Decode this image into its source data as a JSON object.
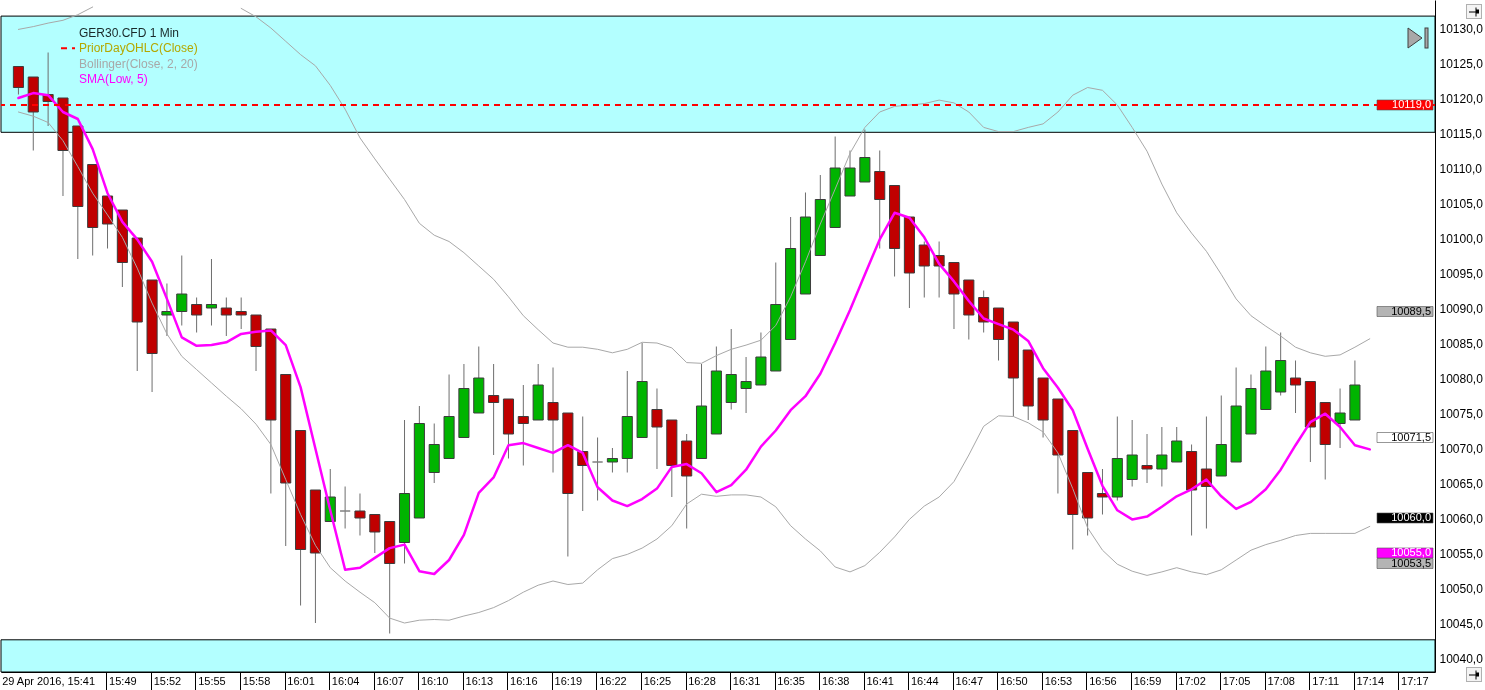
{
  "chart_data": {
    "type": "candlestick",
    "title": "GER30.CFD 1 Min",
    "legend": "top left",
    "categories": [
      null,
      null,
      "29 Apr 2016, 15:41",
      null,
      null,
      null,
      null,
      "15:49",
      null,
      null,
      "15:52",
      null,
      null,
      "15:55",
      null,
      null,
      "15:58",
      null,
      null,
      "16:01",
      null,
      null,
      "16:04",
      null,
      null,
      "16:07",
      null,
      null,
      "16:10",
      null,
      null,
      "16:13",
      null,
      null,
      "16:16",
      null,
      null,
      "16:19",
      null,
      null,
      "16:22",
      null,
      null,
      "16:25",
      null,
      null,
      "16:28",
      null,
      null,
      "16:31",
      null,
      null,
      "16:35",
      null,
      null,
      "16:38",
      null,
      null,
      "16:41",
      null,
      null,
      "16:44",
      null,
      null,
      "16:47",
      null,
      null,
      "16:50",
      null,
      null,
      "16:53",
      null,
      null,
      "16:56",
      null,
      null,
      "16:59",
      null,
      null,
      "17:02",
      null,
      null,
      "17:05",
      null,
      null,
      "17:08",
      null,
      null,
      "17:11",
      null,
      null,
      "17:14",
      null,
      null,
      "17:17"
    ],
    "ohlc": [
      [
        10124.5,
        10124.5,
        10120.5,
        10121.5
      ],
      [
        10123,
        10123,
        10112.5,
        10118
      ],
      [
        10120.5,
        10126.5,
        10116,
        10119.5
      ],
      [
        10120,
        10120,
        10106,
        10112.5
      ],
      [
        10116,
        10116,
        10097,
        10104.5
      ],
      [
        10110.5,
        10110.5,
        10097.5,
        10101.5
      ],
      [
        10106,
        10106,
        10098.5,
        10102
      ],
      [
        10104,
        10104,
        10093,
        10096.5
      ],
      [
        10100,
        10100,
        10081,
        10088
      ],
      [
        10094,
        10094,
        10078,
        10083.5
      ],
      [
        10089,
        10093.5,
        10086,
        10089.5
      ],
      [
        10089.5,
        10097.5,
        10087.5,
        10092
      ],
      [
        10090.5,
        10091.5,
        10086.5,
        10089
      ],
      [
        10090,
        10097,
        10087.5,
        10090.5
      ],
      [
        10090,
        10091.5,
        10086,
        10089
      ],
      [
        10089.5,
        10091.5,
        10087,
        10089
      ],
      [
        10089,
        10089,
        10081,
        10084.5
      ],
      [
        10087,
        10087,
        10063.5,
        10074
      ],
      [
        10080.5,
        10080.5,
        10056,
        10065
      ],
      [
        10072.5,
        10072.5,
        10047.5,
        10055.5
      ],
      [
        10064,
        10064,
        10045,
        10055
      ],
      [
        10059.5,
        10067,
        10059.5,
        10063
      ],
      [
        10061,
        10064.5,
        10058.5,
        10061
      ],
      [
        10061,
        10063.5,
        10057.5,
        10060
      ],
      [
        10060.5,
        10060.5,
        10055,
        10058
      ],
      [
        10059.5,
        10059.5,
        10043.5,
        10053.5
      ],
      [
        10056.5,
        10074,
        10053.5,
        10063.5
      ],
      [
        10060,
        10076,
        10060,
        10073.5
      ],
      [
        10066.5,
        10073.5,
        10065,
        10070.5
      ],
      [
        10068.5,
        10080.5,
        10068.5,
        10074.5
      ],
      [
        10071.5,
        10082,
        10071.5,
        10078.5
      ],
      [
        10075,
        10084.5,
        10075,
        10080
      ],
      [
        10077.5,
        10082,
        10069,
        10076.5
      ],
      [
        10077,
        10077,
        10068.5,
        10072
      ],
      [
        10074.5,
        10079,
        10067.5,
        10073.5
      ],
      [
        10074,
        10082,
        10074,
        10079
      ],
      [
        10076.5,
        10081.5,
        10066.5,
        10074
      ],
      [
        10075,
        10075,
        10054.5,
        10063.5
      ],
      [
        10069.5,
        10074.5,
        10061,
        10067.5
      ],
      [
        10068,
        10071.5,
        10062.5,
        10068
      ],
      [
        10068,
        10070,
        10066.5,
        10068.5
      ],
      [
        10068.5,
        10081,
        10066.5,
        10074.5
      ],
      [
        10071.5,
        10085,
        10071.5,
        10079.5
      ],
      [
        10075.5,
        10078.5,
        10067,
        10073
      ],
      [
        10074,
        10074,
        10063,
        10067.5
      ],
      [
        10071,
        10072,
        10058.5,
        10066
      ],
      [
        10068.5,
        10082,
        10068.5,
        10076
      ],
      [
        10072,
        10084.5,
        10072,
        10081
      ],
      [
        10076.5,
        10087,
        10075.5,
        10080.5
      ],
      [
        10078.5,
        10083,
        10075,
        10079.5
      ],
      [
        10079,
        10086.5,
        10079,
        10083
      ],
      [
        10081,
        10096.5,
        10081,
        10090.5
      ],
      [
        10085.5,
        10103,
        10085.5,
        10098.5
      ],
      [
        10092,
        10106.5,
        10092,
        10103
      ],
      [
        10097.5,
        10109,
        10097.5,
        10105.5
      ],
      [
        10101.5,
        10114.5,
        10101.5,
        10110
      ],
      [
        10106,
        10112.5,
        10106,
        10110
      ],
      [
        10108,
        10115.5,
        10108,
        10111.5
      ],
      [
        10109.5,
        10112.5,
        10098.5,
        10105.5
      ],
      [
        10107.5,
        10107.5,
        10094.5,
        10098.5
      ],
      [
        10103,
        10103,
        10090,
        10095
      ],
      [
        10099,
        10099.5,
        10091.5,
        10096
      ],
      [
        10097.5,
        10099.5,
        10091.5,
        10096
      ],
      [
        10096.5,
        10096.5,
        10087,
        10092
      ],
      [
        10094,
        10094,
        10085.5,
        10089
      ],
      [
        10091.5,
        10092.5,
        10086.5,
        10088
      ],
      [
        10090,
        10090,
        10082.5,
        10085.5
      ],
      [
        10088,
        10088,
        10074.5,
        10080
      ],
      [
        10084,
        10084,
        10074,
        10076
      ],
      [
        10080,
        10080,
        10071.5,
        10074
      ],
      [
        10077,
        10077,
        10063.5,
        10069
      ],
      [
        10072.5,
        10072.5,
        10055.5,
        10060.5
      ],
      [
        10066.5,
        10066.5,
        10057.5,
        10060
      ],
      [
        10063.5,
        10067,
        10060.5,
        10063
      ],
      [
        10063,
        10074.5,
        10062.5,
        10068.5
      ],
      [
        10065.5,
        10074,
        10064.5,
        10069
      ],
      [
        10067.5,
        10072,
        10065,
        10067
      ],
      [
        10067,
        10073,
        10064.5,
        10069
      ],
      [
        10068,
        10073,
        10068,
        10071
      ],
      [
        10069.5,
        10070.5,
        10057.5,
        10064
      ],
      [
        10067,
        10074.5,
        10058.5,
        10064.5
      ],
      [
        10066,
        10077.5,
        10066,
        10070.5
      ],
      [
        10068,
        10081.5,
        10068,
        10076
      ],
      [
        10072,
        10080.5,
        10072,
        10078.5
      ],
      [
        10075.5,
        10084.5,
        10075.5,
        10081
      ],
      [
        10078,
        10086.5,
        10077.5,
        10082.5
      ],
      [
        10080,
        10082.5,
        10075,
        10079
      ],
      [
        10079.5,
        10079.5,
        10068,
        10073
      ],
      [
        10076.5,
        10076.5,
        10065.5,
        10070.5
      ],
      [
        10073.5,
        10078.5,
        10070,
        10075
      ],
      [
        10074,
        10082.5,
        10074,
        10079
      ],
      null,
      null,
      null,
      null
    ],
    "colors": [
      "#c00000",
      "#c00000",
      "#c00000",
      "#c00000",
      "#c00000",
      "#c00000",
      "#c00000",
      "#c00000",
      "#c00000",
      "#c00000",
      "#00b400",
      "#00b400",
      "#c00000",
      "#00b400",
      "#c00000",
      "#c00000",
      "#c00000",
      "#c00000",
      "#c00000",
      "#c00000",
      "#c00000",
      "#00b400",
      "#808080",
      "#c00000",
      "#c00000",
      "#c00000",
      "#00b400",
      "#00b400",
      "#00b400",
      "#00b400",
      "#00b400",
      "#00b400",
      "#c00000",
      "#c00000",
      "#c00000",
      "#00b400",
      "#c00000",
      "#c00000",
      "#c00000",
      "#808080",
      "#00b400",
      "#00b400",
      "#00b400",
      "#c00000",
      "#c00000",
      "#c00000",
      "#00b400",
      "#00b400",
      "#00b400",
      "#00b400",
      "#00b400",
      "#00b400",
      "#00b400",
      "#00b400",
      "#00b400",
      "#00b400",
      "#00b400",
      "#00b400",
      "#c00000",
      "#c00000",
      "#c00000",
      "#c00000",
      "#c00000",
      "#c00000",
      "#c00000",
      "#c00000",
      "#c00000",
      "#c00000",
      "#c00000",
      "#c00000",
      "#c00000",
      "#c00000",
      "#c00000",
      "#c00000",
      "#00b400",
      "#00b400",
      "#c00000",
      "#00b400",
      "#00b400",
      "#c00000",
      "#c00000",
      "#00b400",
      "#00b400",
      "#00b400",
      "#00b400",
      "#00b400",
      "#c00000",
      "#c00000",
      "#c00000",
      "#00b400",
      "#00b400",
      null,
      null,
      null,
      null
    ],
    "series": [
      {
        "name": "Bollinger(Close, 2, 20)",
        "type": "line",
        "color": "#a8a8a8",
        "values": [
          10129.8,
          10130.2,
          10130.7,
          10131.1,
          10131.9,
          10133,
          null,
          null,
          null,
          null,
          null,
          null,
          null,
          null,
          null,
          10132.8,
          10131.6,
          10130,
          10128.1,
          10126.2,
          10124.6,
          10121.8,
          10118.4,
          10114.3,
          10111.3,
          10108.4,
          10105.5,
          10102.1,
          10100.4,
          10099.5,
          10097.9,
          10096,
          10094.1,
          10091.6,
          10088.9,
          10086.9,
          10085,
          10084.4,
          10084.4,
          10084.1,
          10083.6,
          10084.1,
          10085.1,
          10085,
          10084.3,
          10082.2,
          10082.1,
          10083.2,
          10084.1,
          10084.7,
          10085.4,
          10087.5,
          10091.6,
          10096.6,
          10102,
          10107,
          10112.1,
          10115.8,
          10118,
          10118.8,
          10119,
          10119.2,
          10119.7,
          10119.3,
          10118,
          10115.8,
          10115.2,
          10115.2,
          10115.8,
          10116.3,
          10118,
          10120.4,
          10121.5,
          10121.1,
          10119,
          10115.8,
          10112.4,
          10107.7,
          10103.6,
          10100.7,
          10098.1,
          10094.8,
          10091.3,
          10088.9,
          10087.4,
          10086,
          10084.4,
          10083.6,
          10083.1,
          10083.3,
          10084.4,
          10085.6,
          null,
          null,
          null
        ]
      },
      {
        "type": "line",
        "color": "#a8a8a8",
        "values": [
          10118,
          10117.4,
          10116.5,
          10113.9,
          10110.2,
          10106.4,
          10103.3,
          10100.1,
          10095.7,
          10090.7,
          10086.3,
          10083.1,
          10081.2,
          10079.3,
          10077.4,
          10075.6,
          10073.4,
          10070.5,
          10065.5,
          10060.5,
          10056.1,
          10052.9,
          10051,
          10049.4,
          10047.9,
          10045.7,
          10045,
          10045.4,
          10045.5,
          10045.4,
          10046,
          10046.5,
          10047.2,
          10048.2,
          10049.4,
          10050.4,
          10051,
          10050.5,
          10050.7,
          10052.6,
          10054.2,
          10054.8,
          10055.7,
          10057,
          10058.9,
          10062,
          10063.4,
          10063.1,
          10063.3,
          10063.3,
          10063,
          10061.6,
          10058.9,
          10057,
          10055.3,
          10053,
          10052.3,
          10053.2,
          10055.1,
          10057.3,
          10059.8,
          10061.7,
          10063,
          10065.2,
          10069,
          10073.1,
          10074.6,
          10074.5,
          10073.6,
          10072.3,
          10069.3,
          10064.2,
          10058.6,
          10055.4,
          10053.4,
          10052.4,
          10051.8,
          10052.3,
          10052.9,
          10052.3,
          10051.9,
          10052.6,
          10054,
          10055.4,
          10056.2,
          10056.8,
          10057.5,
          10057.8,
          10057.8,
          10057.8,
          10057.8,
          10058.8,
          null,
          null,
          null
        ]
      },
      {
        "name": "SMA(Low, 5)",
        "type": "line",
        "color": "#ff00ff",
        "values": [
          10120,
          10120.7,
          10120.4,
          10118,
          10117,
          10112.7,
          10106.4,
          10102.3,
          10099.8,
          10096.6,
          10091.3,
          10085.8,
          10084.6,
          10084.7,
          10085.1,
          10086.3,
          10086.6,
          10086.8,
          10084.7,
          10078.7,
          10069.9,
          10061.1,
          10052.6,
          10052.9,
          10054.3,
          10055.7,
          10056.2,
          10052.4,
          10052,
          10054,
          10057.6,
          10063.6,
          10065.8,
          10070.4,
          10070.7,
          10070,
          10069.3,
          10070.4,
          10069.3,
          10064.4,
          10062.5,
          10061.7,
          10062.7,
          10064.2,
          10067.3,
          10067.7,
          10066.4,
          10063.7,
          10064.7,
          10066.9,
          10070.2,
          10072.5,
          10075.4,
          10077.4,
          10080.6,
          10085,
          10089.7,
          10094.8,
          10099.8,
          10103.6,
          10102.9,
          10100.1,
          10096.3,
          10093.8,
          10091,
          10088.5,
          10087.7,
          10086.9,
          10085.3,
          10081.4,
          10078.6,
          10075.4,
          10069.9,
          10064.6,
          10061.1,
          10059.8,
          10060.2,
          10061.6,
          10063.1,
          10064.1,
          10065.5,
          10063.1,
          10061.3,
          10062.3,
          10064.1,
          10066.9,
          10070.4,
          10073.7,
          10074.9,
          10073,
          10070.4,
          10069.8,
          null,
          null,
          null
        ]
      }
    ],
    "ref_lines": [
      {
        "axis": "y",
        "value": 10119,
        "label": "PriorDayOHLC(Close)",
        "color": "#ff0000",
        "line_style": "dashed"
      }
    ],
    "bands": [
      {
        "axis": "y",
        "from": 10115.1,
        "to": 10131.7,
        "color": "#b3ffff"
      },
      {
        "axis": "y",
        "from": 10038,
        "to": 10042.6,
        "color": "#b3ffff"
      }
    ],
    "annotations": [
      {
        "text": "10119,0",
        "y": 10119
      },
      "10089,5",
      "10071,5",
      "10060,0",
      "10055,0",
      "10053,5"
    ],
    "ylim": [
      10038,
      10134
    ],
    "yticks": [
      {
        "value": 10040,
        "label": "10040,0"
      },
      {
        "value": 10045,
        "label": "10045,0"
      },
      {
        "value": 10050,
        "label": "10050,0"
      },
      {
        "value": 10055,
        "label": "10055,0"
      },
      {
        "value": 10060,
        "label": "10060,0"
      },
      {
        "value": 10065,
        "label": "10065,0"
      },
      {
        "value": 10070,
        "label": "10070,0"
      },
      {
        "value": 10075,
        "label": "10075,0"
      },
      {
        "value": 10080,
        "label": "10080,0"
      },
      {
        "value": 10085,
        "label": "10085,0"
      },
      {
        "value": 10090,
        "label": "10090,0"
      },
      {
        "value": 10095,
        "label": "10095,0"
      },
      {
        "value": 10100,
        "label": "10100,0"
      },
      {
        "value": 10105,
        "label": "10105,0"
      },
      {
        "value": 10110,
        "label": "10110,0"
      },
      {
        "value": 10115,
        "label": "10115,0"
      },
      {
        "value": 10120,
        "label": "10120,0"
      },
      {
        "value": 10125,
        "label": "10125,0"
      },
      {
        "value": 10130,
        "label": "10130,0"
      }
    ]
  }
}
